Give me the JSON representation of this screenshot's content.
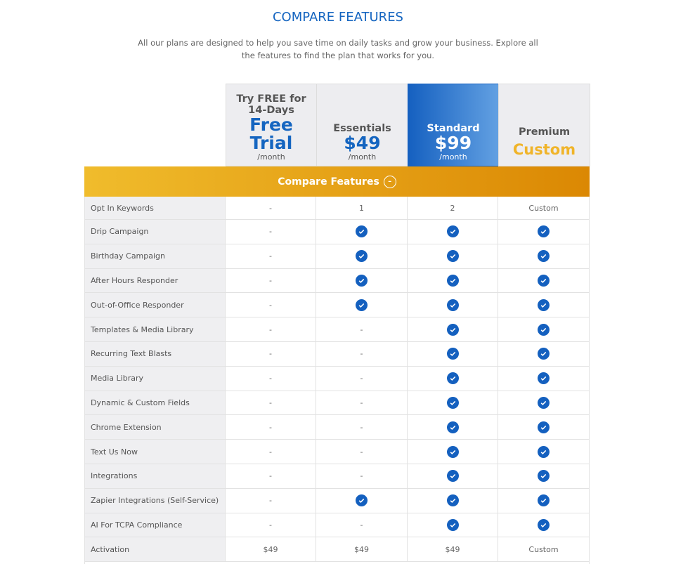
{
  "header": {
    "title": "COMPARE FEATURES",
    "subtitle": "All our plans are designed to help you save time on daily tasks and grow your business. Explore all the features to find the plan that works for you."
  },
  "plans": [
    {
      "name": "Try FREE for 14-Days",
      "price": "Free Trial",
      "period": "/month"
    },
    {
      "name": "Essentials",
      "price": "$49",
      "period": "/month"
    },
    {
      "name": "Standard",
      "price": "$99",
      "period": "/month",
      "highlight": true
    },
    {
      "name": "Premium",
      "price": "Custom"
    }
  ],
  "section": "Compare Features",
  "rows": [
    {
      "feature": "Opt In Keywords",
      "cells": [
        "-",
        "1",
        "2",
        "Custom"
      ]
    },
    {
      "feature": "Drip Campaign",
      "cells": [
        "-",
        true,
        true,
        true
      ]
    },
    {
      "feature": "Birthday Campaign",
      "cells": [
        "-",
        true,
        true,
        true
      ]
    },
    {
      "feature": "After Hours Responder",
      "cells": [
        "-",
        true,
        true,
        true
      ]
    },
    {
      "feature": "Out-of-Office Responder",
      "cells": [
        "-",
        true,
        true,
        true
      ]
    },
    {
      "feature": "Templates & Media Library",
      "cells": [
        "-",
        "-",
        true,
        true
      ]
    },
    {
      "feature": "Recurring Text Blasts",
      "cells": [
        "-",
        "-",
        true,
        true
      ]
    },
    {
      "feature": "Media Library",
      "cells": [
        "-",
        "-",
        true,
        true
      ]
    },
    {
      "feature": "Dynamic & Custom Fields",
      "cells": [
        "-",
        "-",
        true,
        true
      ]
    },
    {
      "feature": "Chrome Extension",
      "cells": [
        "-",
        "-",
        true,
        true
      ]
    },
    {
      "feature": "Text Us Now",
      "cells": [
        "-",
        "-",
        true,
        true
      ]
    },
    {
      "feature": "Integrations",
      "cells": [
        "-",
        "-",
        true,
        true
      ]
    },
    {
      "feature": "Zapier Integrations (Self-Service)",
      "cells": [
        "-",
        true,
        true,
        true
      ]
    },
    {
      "feature": "AI For TCPA Compliance",
      "cells": [
        "-",
        "-",
        true,
        true
      ]
    },
    {
      "feature": "Activation",
      "cells": [
        "$49",
        "$49",
        "$49",
        "Custom"
      ]
    }
  ]
}
